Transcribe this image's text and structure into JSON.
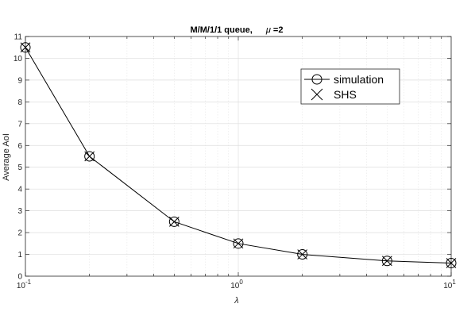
{
  "chart_data": {
    "type": "line",
    "title": "M/M/1/1 queue,",
    "title_param": "=2",
    "title_symbol": "μ",
    "xlabel": "λ",
    "ylabel": "Average AoI",
    "xscale": "log",
    "xlim": [
      0.1,
      10
    ],
    "ylim": [
      0,
      11
    ],
    "grid": true,
    "legend_placement": "top-right",
    "x": [
      0.1,
      0.2,
      0.5,
      1,
      2,
      5,
      10
    ],
    "series": [
      {
        "name": "simulation",
        "marker": "circle",
        "line": true,
        "values": [
          10.5,
          5.5,
          2.5,
          1.5,
          1.0,
          0.7,
          0.6
        ]
      },
      {
        "name": "SHS",
        "marker": "x",
        "line": false,
        "values": [
          10.5,
          5.5,
          2.5,
          1.5,
          1.0,
          0.7,
          0.6
        ]
      }
    ],
    "yticks": [
      "0",
      "1",
      "2",
      "3",
      "4",
      "5",
      "6",
      "7",
      "8",
      "9",
      "10",
      "11"
    ],
    "xticks": [
      {
        "base": "10",
        "exp": "-1"
      },
      {
        "base": "10",
        "exp": "0"
      },
      {
        "base": "10",
        "exp": "1"
      }
    ]
  }
}
